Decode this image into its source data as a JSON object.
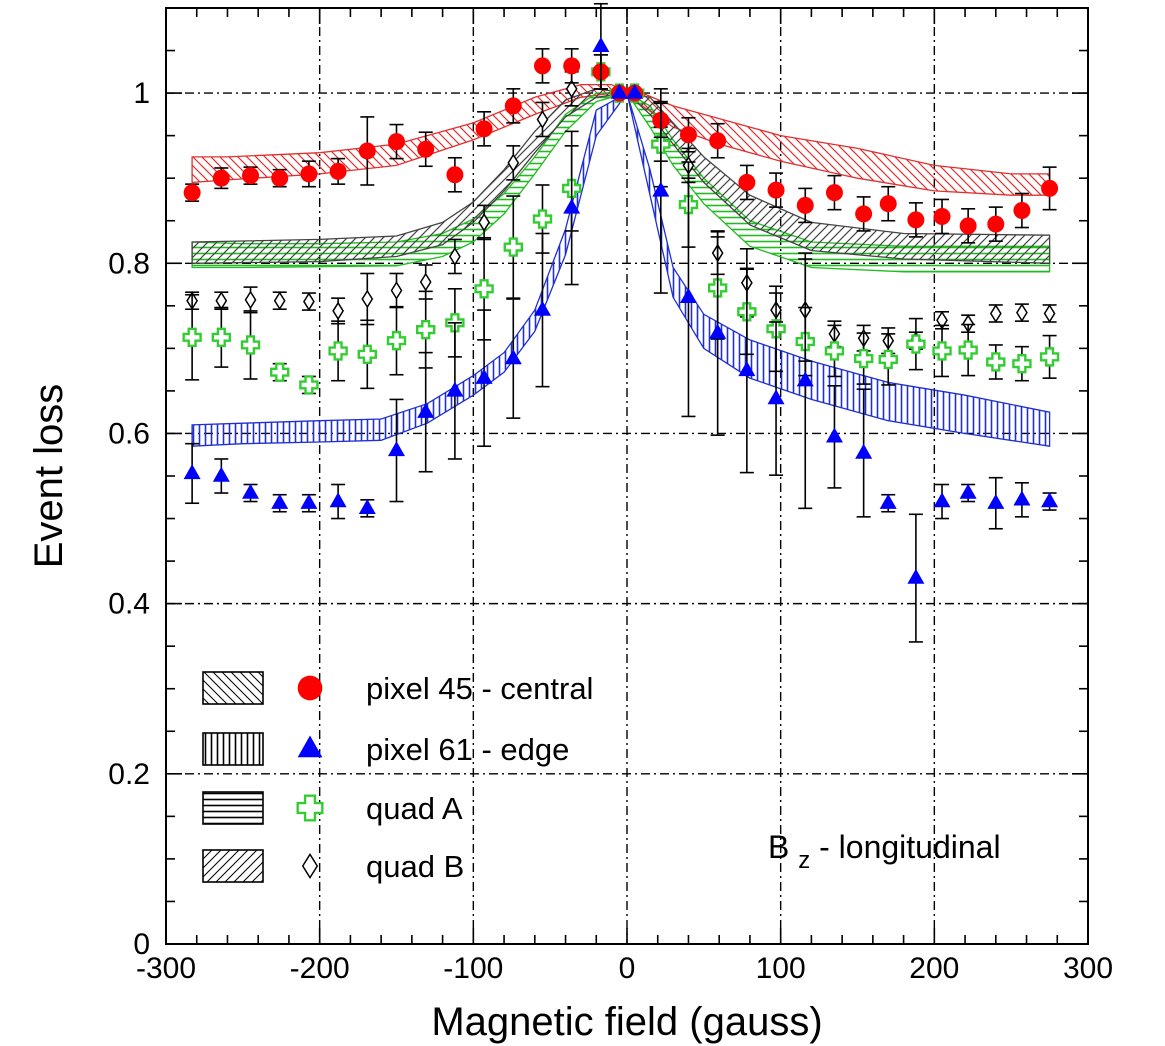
{
  "chart_data": {
    "type": "scatter",
    "xlabel": "Magnetic field (gauss)",
    "ylabel": "Event loss",
    "xlim": [
      -300,
      300
    ],
    "ylim": [
      0,
      1.1
    ],
    "x_ticks": [
      -300,
      -200,
      -100,
      0,
      100,
      200,
      300
    ],
    "x_tick_labels": [
      "-300",
      "-200",
      "-100",
      "0",
      "100",
      "200",
      "300"
    ],
    "y_ticks": [
      0,
      0.2,
      0.4,
      0.6,
      0.8,
      1
    ],
    "y_tick_labels": [
      "0",
      "0.2",
      "0.4",
      "0.6",
      "0.8",
      "1"
    ],
    "grid": true,
    "legend_position": "bottom-left",
    "annotation": {
      "main": "B",
      "sub": "z",
      "rest": " - longitudinal"
    },
    "series": [
      {
        "name": "pixel 45 - central",
        "marker": "circle",
        "color": "#ff0000",
        "band_hatch": "diagonal-down",
        "band_color": "#e03030",
        "points": [
          [
            -283,
            0.883,
            0.01
          ],
          [
            -264,
            0.9,
            0.012
          ],
          [
            -245,
            0.903,
            0.01
          ],
          [
            -226,
            0.9,
            0.01
          ],
          [
            -207,
            0.905,
            0.015
          ],
          [
            -188,
            0.908,
            0.015
          ],
          [
            -169,
            0.932,
            0.04
          ],
          [
            -150,
            0.943,
            0.02
          ],
          [
            -131,
            0.934,
            0.02
          ],
          [
            -112,
            0.904,
            0.02
          ],
          [
            -93,
            0.958,
            0.02
          ],
          [
            -74,
            0.985,
            0.02
          ],
          [
            -55,
            1.032,
            0.02
          ],
          [
            -36,
            1.032,
            0.02
          ],
          [
            -17,
            1.025,
            0.02
          ],
          [
            -5,
            1.0,
            0.005
          ],
          [
            5,
            1.0,
            0.005
          ],
          [
            22,
            0.968,
            0.02
          ],
          [
            40,
            0.951,
            0.02
          ],
          [
            59,
            0.944,
            0.02
          ],
          [
            78,
            0.895,
            0.02
          ],
          [
            97,
            0.886,
            0.02
          ],
          [
            116,
            0.868,
            0.02
          ],
          [
            135,
            0.883,
            0.02
          ],
          [
            154,
            0.858,
            0.02
          ],
          [
            170,
            0.87,
            0.02
          ],
          [
            188,
            0.851,
            0.02
          ],
          [
            205,
            0.855,
            0.02
          ],
          [
            222,
            0.844,
            0.02
          ],
          [
            240,
            0.846,
            0.02
          ],
          [
            257,
            0.862,
            0.02
          ],
          [
            275,
            0.888,
            0.025
          ]
        ],
        "band": [
          [
            -283,
            0.895,
            0.925
          ],
          [
            -260,
            0.898,
            0.925
          ],
          [
            -200,
            0.905,
            0.93
          ],
          [
            -150,
            0.915,
            0.94
          ],
          [
            -100,
            0.945,
            0.965
          ],
          [
            -60,
            0.975,
            0.995
          ],
          [
            -30,
            0.995,
            1.01
          ],
          [
            -10,
            1.0,
            1.01
          ],
          [
            0,
            1.0,
            1.0
          ],
          [
            10,
            0.985,
            1.0
          ],
          [
            30,
            0.96,
            0.985
          ],
          [
            60,
            0.94,
            0.97
          ],
          [
            100,
            0.92,
            0.95
          ],
          [
            150,
            0.9,
            0.935
          ],
          [
            200,
            0.885,
            0.915
          ],
          [
            250,
            0.88,
            0.905
          ],
          [
            275,
            0.88,
            0.905
          ]
        ]
      },
      {
        "name": "pixel 61 - edge",
        "marker": "triangle",
        "color": "#0000ff",
        "band_hatch": "vertical",
        "band_color": "#2030d0",
        "points": [
          [
            -283,
            0.553,
            0.035
          ],
          [
            -264,
            0.55,
            0.02
          ],
          [
            -245,
            0.53,
            0.01
          ],
          [
            -226,
            0.518,
            0.01
          ],
          [
            -207,
            0.518,
            0.01
          ],
          [
            -188,
            0.52,
            0.02
          ],
          [
            -169,
            0.512,
            0.01
          ],
          [
            -150,
            0.58,
            0.06
          ],
          [
            -131,
            0.625,
            0.07
          ],
          [
            -112,
            0.65,
            0.08
          ],
          [
            -93,
            0.665,
            0.08
          ],
          [
            -74,
            0.688,
            0.07
          ],
          [
            -55,
            0.745,
            0.09
          ],
          [
            -36,
            0.865,
            0.09
          ],
          [
            -17,
            1.055,
            0.05
          ],
          [
            -5,
            1.0,
            0.005
          ],
          [
            5,
            1.0,
            0.005
          ],
          [
            22,
            0.885,
            0.12
          ],
          [
            40,
            0.76,
            0.14
          ],
          [
            59,
            0.718,
            0.12
          ],
          [
            78,
            0.674,
            0.12
          ],
          [
            97,
            0.641,
            0.09
          ],
          [
            116,
            0.662,
            0.15
          ],
          [
            135,
            0.596,
            0.06
          ],
          [
            154,
            0.577,
            0.075
          ],
          [
            170,
            0.518,
            0.01
          ],
          [
            188,
            0.43,
            0.075
          ],
          [
            205,
            0.52,
            0.02
          ],
          [
            222,
            0.53,
            0.01
          ],
          [
            240,
            0.518,
            0.03
          ],
          [
            257,
            0.522,
            0.02
          ],
          [
            275,
            0.52,
            0.01
          ]
        ],
        "band": [
          [
            -283,
            0.585,
            0.61
          ],
          [
            -250,
            0.588,
            0.612
          ],
          [
            -200,
            0.59,
            0.615
          ],
          [
            -160,
            0.592,
            0.617
          ],
          [
            -130,
            0.612,
            0.635
          ],
          [
            -100,
            0.645,
            0.668
          ],
          [
            -80,
            0.672,
            0.695
          ],
          [
            -60,
            0.72,
            0.745
          ],
          [
            -40,
            0.81,
            0.84
          ],
          [
            -20,
            0.95,
            0.98
          ],
          [
            0,
            1.0,
            1.0
          ],
          [
            15,
            0.88,
            0.91
          ],
          [
            30,
            0.76,
            0.795
          ],
          [
            50,
            0.7,
            0.74
          ],
          [
            80,
            0.665,
            0.71
          ],
          [
            120,
            0.64,
            0.685
          ],
          [
            170,
            0.615,
            0.66
          ],
          [
            220,
            0.6,
            0.645
          ],
          [
            275,
            0.585,
            0.625
          ]
        ]
      },
      {
        "name": "quad A",
        "marker": "cross",
        "color": "#33cc33",
        "band_hatch": "horizontal",
        "band_color": "#22bb22",
        "points": [
          [
            -283,
            0.713,
            0.05
          ],
          [
            -264,
            0.713,
            0.035
          ],
          [
            -245,
            0.704,
            0.04
          ],
          [
            -226,
            0.672,
            0.01
          ],
          [
            -207,
            0.657,
            0.01
          ],
          [
            -188,
            0.697,
            0.035
          ],
          [
            -169,
            0.693,
            0.04
          ],
          [
            -150,
            0.709,
            0.04
          ],
          [
            -131,
            0.722,
            0.045
          ],
          [
            -112,
            0.73,
            0.04
          ],
          [
            -93,
            0.77,
            0.06
          ],
          [
            -74,
            0.819,
            0.06
          ],
          [
            -55,
            0.852,
            0.04
          ],
          [
            -36,
            0.888,
            0.05
          ],
          [
            -17,
            1.025,
            0.02
          ],
          [
            -5,
            1.0,
            0.005
          ],
          [
            5,
            1.0,
            0.005
          ],
          [
            22,
            0.94,
            0.05
          ],
          [
            40,
            0.869,
            0.05
          ],
          [
            59,
            0.771,
            0.06
          ],
          [
            78,
            0.743,
            0.05
          ],
          [
            97,
            0.723,
            0.05
          ],
          [
            116,
            0.708,
            0.04
          ],
          [
            135,
            0.697,
            0.03
          ],
          [
            154,
            0.688,
            0.03
          ],
          [
            170,
            0.687,
            0.03
          ],
          [
            188,
            0.705,
            0.03
          ],
          [
            205,
            0.697,
            0.03
          ],
          [
            222,
            0.698,
            0.03
          ],
          [
            240,
            0.684,
            0.02
          ],
          [
            257,
            0.682,
            0.02
          ],
          [
            275,
            0.69,
            0.025
          ]
        ],
        "band": [
          [
            -283,
            0.795,
            0.825
          ],
          [
            -250,
            0.795,
            0.823
          ],
          [
            -200,
            0.796,
            0.823
          ],
          [
            -150,
            0.797,
            0.825
          ],
          [
            -120,
            0.808,
            0.835
          ],
          [
            -100,
            0.825,
            0.852
          ],
          [
            -80,
            0.858,
            0.882
          ],
          [
            -60,
            0.905,
            0.925
          ],
          [
            -40,
            0.955,
            0.975
          ],
          [
            -20,
            0.99,
            1.0
          ],
          [
            0,
            1.0,
            1.0
          ],
          [
            15,
            0.96,
            0.985
          ],
          [
            30,
            0.915,
            0.945
          ],
          [
            50,
            0.87,
            0.9
          ],
          [
            80,
            0.82,
            0.85
          ],
          [
            120,
            0.795,
            0.825
          ],
          [
            180,
            0.79,
            0.82
          ],
          [
            275,
            0.79,
            0.82
          ]
        ]
      },
      {
        "name": "quad B",
        "marker": "diamond",
        "color": "#000000",
        "band_hatch": "diagonal-up",
        "band_color": "#444444",
        "points": [
          [
            -283,
            0.756,
            0.01
          ],
          [
            -264,
            0.756,
            0.01
          ],
          [
            -245,
            0.757,
            0.015
          ],
          [
            -226,
            0.756,
            0.01
          ],
          [
            -207,
            0.755,
            0.01
          ],
          [
            -188,
            0.744,
            0.015
          ],
          [
            -169,
            0.758,
            0.03
          ],
          [
            -150,
            0.768,
            0.02
          ],
          [
            -131,
            0.778,
            0.02
          ],
          [
            -112,
            0.808,
            0.02
          ],
          [
            -93,
            0.848,
            0.02
          ],
          [
            -74,
            0.918,
            0.02
          ],
          [
            -55,
            0.969,
            0.02
          ],
          [
            -36,
            1.005,
            0.02
          ],
          [
            -17,
            1.025,
            0.02
          ],
          [
            -5,
            1.0,
            0.005
          ],
          [
            5,
            1.0,
            0.005
          ],
          [
            22,
            0.94,
            0.02
          ],
          [
            40,
            0.915,
            0.02
          ],
          [
            59,
            0.812,
            0.025
          ],
          [
            78,
            0.777,
            0.04
          ],
          [
            97,
            0.745,
            0.02
          ],
          [
            116,
            0.745,
            0.06
          ],
          [
            135,
            0.717,
            0.015
          ],
          [
            154,
            0.712,
            0.015
          ],
          [
            170,
            0.709,
            0.015
          ],
          [
            188,
            0.709,
            0.01
          ],
          [
            205,
            0.733,
            0.01
          ],
          [
            222,
            0.729,
            0.01
          ],
          [
            240,
            0.741,
            0.01
          ],
          [
            257,
            0.742,
            0.01
          ],
          [
            275,
            0.741,
            0.01
          ]
        ],
        "band": [
          [
            -283,
            0.8,
            0.825
          ],
          [
            -200,
            0.802,
            0.828
          ],
          [
            -150,
            0.808,
            0.832
          ],
          [
            -120,
            0.822,
            0.848
          ],
          [
            -100,
            0.848,
            0.872
          ],
          [
            -80,
            0.885,
            0.91
          ],
          [
            -60,
            0.93,
            0.955
          ],
          [
            -40,
            0.972,
            0.992
          ],
          [
            -20,
            0.995,
            1.005
          ],
          [
            0,
            1.0,
            1.0
          ],
          [
            15,
            0.975,
            0.995
          ],
          [
            30,
            0.94,
            0.965
          ],
          [
            50,
            0.895,
            0.925
          ],
          [
            80,
            0.845,
            0.88
          ],
          [
            120,
            0.815,
            0.848
          ],
          [
            180,
            0.805,
            0.835
          ],
          [
            275,
            0.8,
            0.833
          ]
        ]
      }
    ]
  }
}
